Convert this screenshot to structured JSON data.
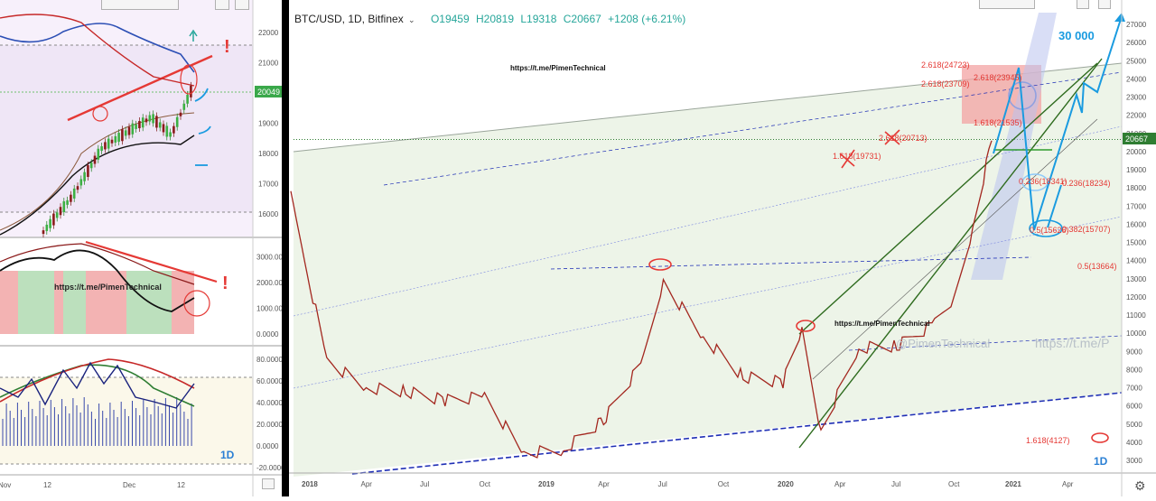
{
  "main": {
    "symbol": "BTC/USD, 1D, Bitfinex",
    "ohlc": {
      "open": "O19459",
      "high": "H20819",
      "low": "L19318",
      "close": "C20667",
      "change": "+1208 (+6.21%)"
    },
    "watermarks": [
      "https://t.me/PimenTechnical",
      "https://t.me/PimenTechnical",
      "@PimenTechnical",
      "https://t.me/P"
    ],
    "timeframe": "1D",
    "target_label": "30 000",
    "price_tag": "20667",
    "fib_levels": [
      {
        "label": "2.618(24723)",
        "value": 24723
      },
      {
        "label": "2.618(23945)",
        "value": 23945
      },
      {
        "label": "2.618(23709)",
        "value": 23709
      },
      {
        "label": "1.618(21535)",
        "value": 21535
      },
      {
        "label": "2.618(20713)",
        "value": 20713
      },
      {
        "label": "1.618(19731)",
        "value": 19731
      },
      {
        "label": "0.236(18341)",
        "value": 18341
      },
      {
        "label": "0.236(18234)",
        "value": 18234
      },
      {
        "label": "0.5(15626)",
        "value": 15626
      },
      {
        "label": "0.382(15707)",
        "value": 15707
      },
      {
        "label": "0.5(13664)",
        "value": 13664
      },
      {
        "label": "1.618(4127)",
        "value": 4127
      }
    ],
    "colors": {
      "up": "#26a69a",
      "down": "#c0392b",
      "candle": "#a3271f",
      "channel": "#2e6b1e",
      "fib": "#e53935",
      "arrow": "#1a9be0",
      "dashed": "#1f2fb5"
    }
  },
  "left": {
    "watermark": "https://t.me/PimenTechnical",
    "timeframe": "1D",
    "price_tag": "20049",
    "exclamations": [
      "!",
      "!"
    ]
  },
  "chart_data": [
    {
      "type": "line",
      "title": "BTC/USD, 1D, Bitfinex",
      "xlabel": "",
      "ylabel": "",
      "x_tick_labels": [
        "2018",
        "Apr",
        "Jul",
        "Oct",
        "2019",
        "Apr",
        "Jul",
        "Oct",
        "2020",
        "Apr",
        "Jul",
        "Oct",
        "2021",
        "Apr"
      ],
      "y_tick_labels": [
        "27000",
        "26000",
        "25000",
        "24000",
        "23000",
        "22000",
        "21000",
        "20000",
        "19000",
        "18000",
        "17000",
        "16000",
        "15000",
        "14000",
        "13000",
        "12000",
        "11000",
        "10000",
        "9000",
        "8000",
        "7000",
        "6000",
        "5000",
        "4000",
        "3000"
      ],
      "ylim": [
        2400,
        27600
      ],
      "series": [
        {
          "x": [
            "2017-12",
            "2018-02",
            "2018-04",
            "2018-06",
            "2018-08",
            "2018-10",
            "2018-12",
            "2019-02",
            "2019-04",
            "2019-06",
            "2019-07",
            "2019-09",
            "2019-11",
            "2020-01",
            "2020-02",
            "2020-03",
            "2020-05",
            "2020-07",
            "2020-09",
            "2020-10",
            "2020-11",
            "2020-12"
          ],
          "values": [
            17500,
            8500,
            7000,
            6800,
            6300,
            6500,
            3400,
            3600,
            5200,
            8500,
            12800,
            9800,
            7600,
            7300,
            10100,
            4600,
            9200,
            9300,
            10500,
            11800,
            15800,
            20600
          ]
        }
      ]
    },
    {
      "type": "line",
      "title": "",
      "x_tick_labels": [
        "Nov",
        "12",
        "Dec",
        "12"
      ],
      "y_tick_labels": [
        "22000",
        "21000",
        "20000",
        "19000",
        "18000",
        "17000",
        "16000"
      ],
      "ylim": [
        15500,
        22600
      ],
      "series": [
        {
          "x": [
            1,
            4,
            7,
            10,
            12,
            14,
            16
          ],
          "values": [
            15400,
            16600,
            18200,
            18800,
            19200,
            18600,
            20049
          ]
        }
      ]
    },
    {
      "type": "area",
      "title": "",
      "y_tick_labels": [
        "3000.000",
        "2000.000",
        "1000.000",
        "0.0000"
      ],
      "ylim": [
        -300,
        3500
      ]
    },
    {
      "type": "line",
      "title": "",
      "y_tick_labels": [
        "80.0000",
        "60.0000",
        "40.0000",
        "20.0000",
        "0.0000",
        "-20.0000"
      ],
      "ylim": [
        -25,
        90
      ]
    }
  ]
}
